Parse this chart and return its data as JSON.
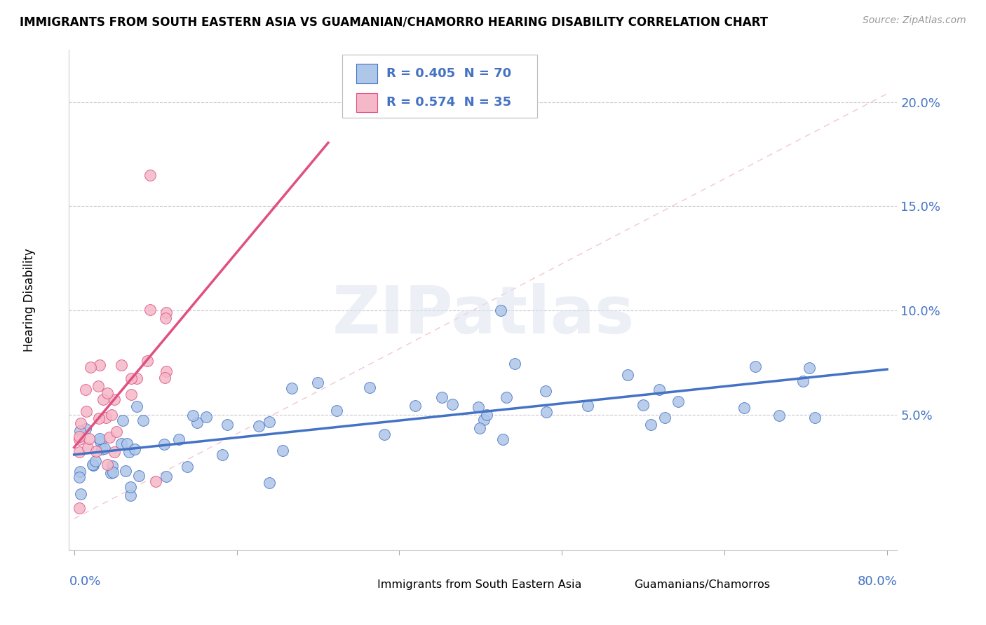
{
  "title": "IMMIGRANTS FROM SOUTH EASTERN ASIA VS GUAMANIAN/CHAMORRO HEARING DISABILITY CORRELATION CHART",
  "source": "Source: ZipAtlas.com",
  "ylabel": "Hearing Disability",
  "ytick_values": [
    0.05,
    0.1,
    0.15,
    0.2
  ],
  "xlim": [
    0.0,
    0.8
  ],
  "ylim": [
    -0.015,
    0.225
  ],
  "legend1_r": "0.405",
  "legend1_n": "70",
  "legend2_r": "0.574",
  "legend2_n": "35",
  "scatter1_color": "#aec6e8",
  "scatter2_color": "#f4b8c8",
  "line1_color": "#4472c4",
  "line2_color": "#e05080",
  "diag_color": "#f4b8c8",
  "text_blue": "#4472c4",
  "text_red": "#e03030",
  "bottom_legend1": "Immigrants from South Eastern Asia",
  "bottom_legend2": "Guamanians/Chamorros",
  "watermark_text": "ZIPatlas"
}
